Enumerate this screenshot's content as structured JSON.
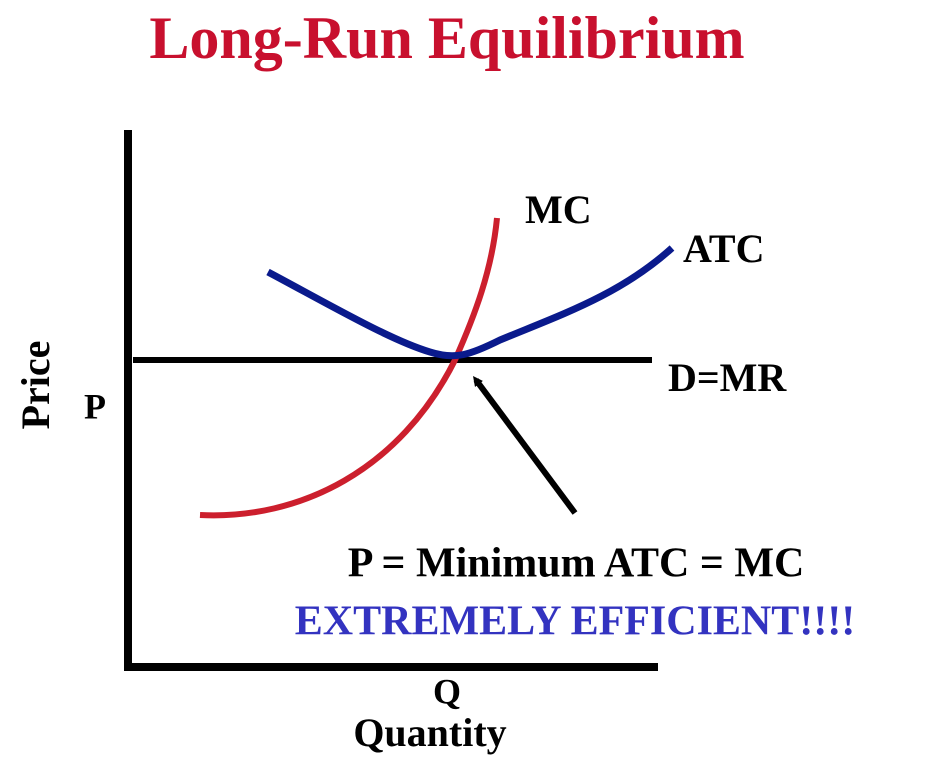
{
  "title": "Long-Run Equilibrium",
  "axes": {
    "y_label": "Price",
    "y_marker": "P",
    "x_marker": "Q",
    "x_label": "Quantity"
  },
  "curves": {
    "mc": "MC",
    "atc": "ATC",
    "demand": "D=MR"
  },
  "annotation": {
    "equation": "P = Minimum ATC = MC",
    "note": "EXTREMELY EFFICIENT!!!!"
  }
}
